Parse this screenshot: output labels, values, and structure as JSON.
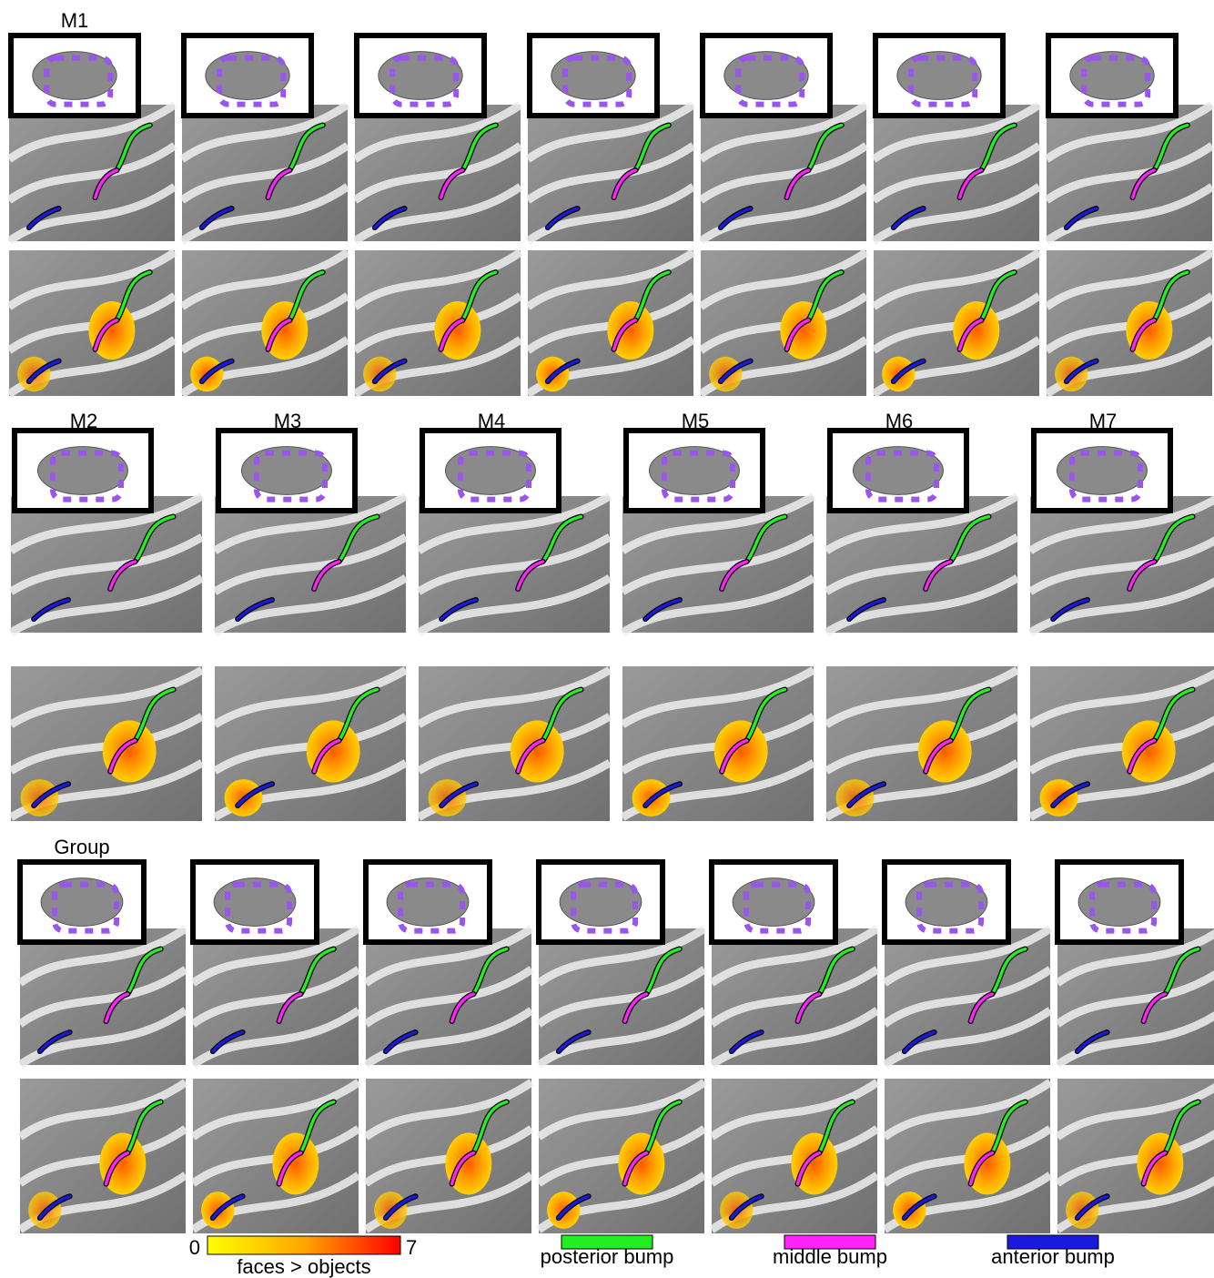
{
  "panel_labels": [
    "M1",
    "M2",
    "M3",
    "M4",
    "M5",
    "M6",
    "M7",
    "Group"
  ],
  "colorbar": {
    "label": "faces > objects",
    "ticks": [
      0,
      7
    ],
    "colors": [
      "#ffff00",
      "#ffa500",
      "#ff0000"
    ]
  },
  "legend": [
    {
      "label": "posterior bump",
      "color": "#22ee22"
    },
    {
      "label": "middle bump",
      "color": "#ff22ff"
    },
    {
      "label": "anterior bump",
      "color": "#1a1adf"
    }
  ]
}
